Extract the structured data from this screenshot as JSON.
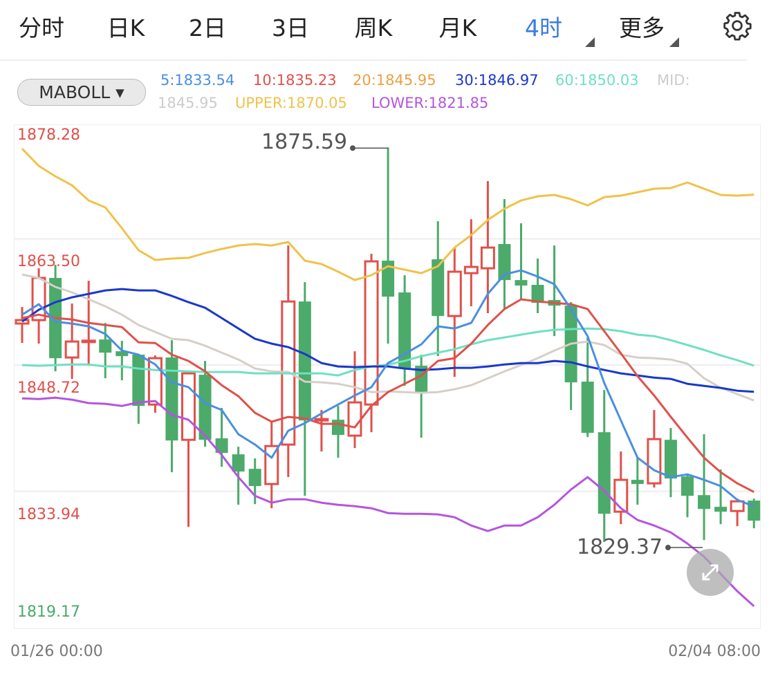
{
  "tabs": {
    "items": [
      {
        "label": "分时",
        "active": false
      },
      {
        "label": "日K",
        "active": false
      },
      {
        "label": "2日",
        "active": false
      },
      {
        "label": "3日",
        "active": false
      },
      {
        "label": "周K",
        "active": false
      },
      {
        "label": "月K",
        "active": false
      },
      {
        "label": "4时",
        "active": true
      },
      {
        "label": "更多",
        "active": false
      }
    ],
    "settings_icon": "gear-icon"
  },
  "indicator": {
    "selected": "MABOLL",
    "dropdown_icon": "▾",
    "legend": [
      {
        "text": "5:1833.54",
        "color": "#4a8fe0"
      },
      {
        "text": "10:1835.23",
        "color": "#e0504a"
      },
      {
        "text": "20:1845.95",
        "color": "#eba045"
      },
      {
        "text": "30:1846.97",
        "color": "#1a38cc"
      },
      {
        "text": "60:1850.03",
        "color": "#6fe0c2"
      },
      {
        "text": "MID:",
        "color": "#cccccc"
      },
      {
        "text": "1845.95",
        "color": "#cccccc"
      },
      {
        "text": "UPPER:1870.05",
        "color": "#f0c24a"
      },
      {
        "text": "LOWER:1821.85",
        "color": "#b455e0"
      }
    ]
  },
  "colors": {
    "up": "#e0504a",
    "down": "#4caa6a",
    "active_tab": "#3d7be0"
  },
  "chart_data": {
    "type": "candlestick",
    "y_ticks": [
      {
        "label": "1878.28",
        "value": 1878.28,
        "color": "#e0504a"
      },
      {
        "label": "1863.50",
        "value": 1863.5,
        "color": "#e0504a"
      },
      {
        "label": "1848.72",
        "value": 1848.72,
        "color": "#e0504a"
      },
      {
        "label": "1833.94",
        "value": 1833.94,
        "color": "#e0504a"
      },
      {
        "label": "1819.17",
        "value": 1819.17,
        "color": "#4caa6a"
      }
    ],
    "ylim": [
      1819.17,
      1878.28
    ],
    "grid": true,
    "x_labels": {
      "start": "01/26 00:00",
      "end": "02/04 08:00"
    },
    "annotations": {
      "high": {
        "label": "1875.59",
        "value": 1875.59
      },
      "low": {
        "label": "1829.37",
        "value": 1829.37
      }
    },
    "candles": [
      {
        "o": 1854.96,
        "h": 1856.9,
        "l": 1852.69,
        "c": 1855.36
      },
      {
        "o": 1855.36,
        "h": 1861.43,
        "l": 1852.61,
        "c": 1860.3
      },
      {
        "o": 1860.3,
        "h": 1861.84,
        "l": 1849.36,
        "c": 1850.9
      },
      {
        "o": 1850.98,
        "h": 1857.3,
        "l": 1848.47,
        "c": 1852.85
      },
      {
        "o": 1852.85,
        "h": 1859.97,
        "l": 1850.01,
        "c": 1852.95
      },
      {
        "o": 1853.09,
        "h": 1855.03,
        "l": 1848.55,
        "c": 1851.55
      },
      {
        "o": 1851.71,
        "h": 1852.93,
        "l": 1848.31,
        "c": 1851.14
      },
      {
        "o": 1851.31,
        "h": 1851.39,
        "l": 1843.21,
        "c": 1845.31
      },
      {
        "o": 1845.47,
        "h": 1851.23,
        "l": 1844.5,
        "c": 1850.9
      },
      {
        "o": 1850.98,
        "h": 1853.01,
        "l": 1837.54,
        "c": 1841.26
      },
      {
        "o": 1841.34,
        "h": 1849.36,
        "l": 1831.14,
        "c": 1849.12
      },
      {
        "o": 1848.96,
        "h": 1850.58,
        "l": 1840.53,
        "c": 1841.34
      },
      {
        "o": 1841.51,
        "h": 1845.07,
        "l": 1838.18,
        "c": 1839.8
      },
      {
        "o": 1839.64,
        "h": 1840.53,
        "l": 1833.73,
        "c": 1837.62
      },
      {
        "o": 1837.94,
        "h": 1839.16,
        "l": 1833.81,
        "c": 1835.92
      },
      {
        "o": 1836.16,
        "h": 1843.45,
        "l": 1833.32,
        "c": 1840.61
      },
      {
        "o": 1840.78,
        "h": 1864.1,
        "l": 1836.97,
        "c": 1857.54
      },
      {
        "o": 1857.54,
        "h": 1859.81,
        "l": 1834.78,
        "c": 1843.61
      },
      {
        "o": 1843.61,
        "h": 1844.83,
        "l": 1839.97,
        "c": 1843.77
      },
      {
        "o": 1843.69,
        "h": 1845.31,
        "l": 1839.24,
        "c": 1841.91
      },
      {
        "o": 1841.83,
        "h": 1851.71,
        "l": 1840.37,
        "c": 1845.72
      },
      {
        "o": 1845.47,
        "h": 1863.13,
        "l": 1842.23,
        "c": 1862.24
      },
      {
        "o": 1862.32,
        "h": 1875.59,
        "l": 1852.6,
        "c": 1858.11
      },
      {
        "o": 1858.6,
        "h": 1860.62,
        "l": 1847.66,
        "c": 1849.69
      },
      {
        "o": 1850.01,
        "h": 1851.31,
        "l": 1841.59,
        "c": 1846.93
      },
      {
        "o": 1862.48,
        "h": 1866.94,
        "l": 1851.14,
        "c": 1855.84
      },
      {
        "o": 1855.84,
        "h": 1863.86,
        "l": 1848.71,
        "c": 1861.03
      },
      {
        "o": 1860.86,
        "h": 1867.18,
        "l": 1856.98,
        "c": 1861.59
      },
      {
        "o": 1861.43,
        "h": 1871.64,
        "l": 1856.17,
        "c": 1863.86
      },
      {
        "o": 1864.27,
        "h": 1869.53,
        "l": 1856.65,
        "c": 1860.05
      },
      {
        "o": 1860.05,
        "h": 1866.7,
        "l": 1857.79,
        "c": 1859.41
      },
      {
        "o": 1859.49,
        "h": 1862.57,
        "l": 1856.17,
        "c": 1857.38
      },
      {
        "o": 1857.71,
        "h": 1864.1,
        "l": 1853.49,
        "c": 1857.06
      },
      {
        "o": 1857.06,
        "h": 1857.46,
        "l": 1844.83,
        "c": 1848.07
      },
      {
        "o": 1848.15,
        "h": 1853.33,
        "l": 1841.67,
        "c": 1842.15
      },
      {
        "o": 1842.23,
        "h": 1847.18,
        "l": 1829.37,
        "c": 1832.68
      },
      {
        "o": 1832.92,
        "h": 1839.97,
        "l": 1831.46,
        "c": 1836.65
      },
      {
        "o": 1836.65,
        "h": 1839.24,
        "l": 1833.73,
        "c": 1836.16
      },
      {
        "o": 1836.24,
        "h": 1844.83,
        "l": 1835.75,
        "c": 1841.42
      },
      {
        "o": 1841.34,
        "h": 1842.72,
        "l": 1834.62,
        "c": 1836.81
      },
      {
        "o": 1837.05,
        "h": 1837.38,
        "l": 1832.27,
        "c": 1834.78
      },
      {
        "o": 1834.86,
        "h": 1841.99,
        "l": 1829.6,
        "c": 1833.24
      },
      {
        "o": 1833.49,
        "h": 1837.86,
        "l": 1831.46,
        "c": 1832.92
      },
      {
        "o": 1833.0,
        "h": 1834.45,
        "l": 1831.22,
        "c": 1834.13
      },
      {
        "o": 1834.22,
        "h": 1834.45,
        "l": 1830.98,
        "c": 1831.87
      }
    ],
    "series": [
      {
        "name": "UPPER",
        "color": "#f0c24a",
        "values": [
          1875.44,
          1873.42,
          1872.2,
          1871.15,
          1869.37,
          1868.56,
          1866.13,
          1863.54,
          1862.4,
          1862.57,
          1862.65,
          1863.21,
          1863.7,
          1864.1,
          1864.27,
          1864.1,
          1864.51,
          1862.32,
          1861.92,
          1861.03,
          1860.05,
          1860.62,
          1861.67,
          1861.27,
          1860.86,
          1861.67,
          1863.86,
          1865.32,
          1867.1,
          1868.4,
          1869.37,
          1869.86,
          1870.02,
          1869.53,
          1868.8,
          1869.77,
          1869.94,
          1870.34,
          1870.75,
          1870.83,
          1871.48,
          1870.75,
          1870.02,
          1869.94,
          1870.05
        ]
      },
      {
        "name": "MID",
        "color": "#d6cfc8",
        "values": [
          1860.7,
          1860.3,
          1859.24,
          1858.6,
          1857.79,
          1856.98,
          1856.0,
          1854.79,
          1853.98,
          1853.17,
          1853.01,
          1852.36,
          1851.55,
          1850.74,
          1849.69,
          1849.36,
          1849.28,
          1848.15,
          1848.07,
          1847.9,
          1847.5,
          1846.93,
          1847.01,
          1846.93,
          1846.85,
          1846.93,
          1847.26,
          1847.74,
          1848.55,
          1849.36,
          1850.09,
          1850.9,
          1851.79,
          1852.6,
          1852.85,
          1852.44,
          1851.31,
          1850.98,
          1850.9,
          1850.74,
          1850.25,
          1848.55,
          1847.42,
          1846.69,
          1845.95
        ]
      },
      {
        "name": "LOWER",
        "color": "#b455e0",
        "values": [
          1846.2,
          1846.12,
          1846.28,
          1846.04,
          1845.64,
          1845.56,
          1845.31,
          1845.72,
          1845.88,
          1844.26,
          1843.69,
          1841.83,
          1839.56,
          1836.97,
          1834.78,
          1833.97,
          1834.38,
          1834.38,
          1833.97,
          1833.73,
          1833.57,
          1833.32,
          1832.76,
          1832.68,
          1832.68,
          1832.6,
          1832.27,
          1831.3,
          1830.65,
          1831.3,
          1831.3,
          1832.27,
          1833.73,
          1835.51,
          1836.97,
          1835.35,
          1833.32,
          1831.95,
          1831.3,
          1830.49,
          1829.19,
          1827.65,
          1825.63,
          1823.6,
          1821.85
        ]
      },
      {
        "name": "60",
        "color": "#6fe0c2",
        "values": [
          1850.09,
          1850.01,
          1850.09,
          1850.17,
          1850.17,
          1849.93,
          1849.93,
          1849.69,
          1849.52,
          1849.44,
          1849.36,
          1849.28,
          1849.28,
          1849.28,
          1849.12,
          1849.12,
          1849.12,
          1849.12,
          1849.12,
          1848.88,
          1849.52,
          1849.93,
          1850.17,
          1850.58,
          1851.14,
          1851.55,
          1851.95,
          1852.52,
          1853.01,
          1853.33,
          1853.66,
          1853.98,
          1854.22,
          1854.3,
          1854.38,
          1854.3,
          1854.06,
          1853.66,
          1853.49,
          1853.01,
          1852.44,
          1851.87,
          1851.23,
          1850.66,
          1850.03
        ]
      },
      {
        "name": "30",
        "color": "#1a38cc",
        "values": [
          1855.19,
          1856.57,
          1857.46,
          1858.03,
          1858.43,
          1858.84,
          1859.0,
          1858.84,
          1858.84,
          1858.19,
          1857.46,
          1856.81,
          1855.6,
          1854.38,
          1853.17,
          1852.6,
          1852.2,
          1851.39,
          1850.33,
          1849.93,
          1849.85,
          1849.93,
          1849.93,
          1849.69,
          1849.52,
          1849.61,
          1849.77,
          1849.77,
          1849.93,
          1850.17,
          1850.33,
          1850.33,
          1850.58,
          1850.42,
          1849.93,
          1849.52,
          1849.12,
          1848.88,
          1848.63,
          1848.47,
          1847.9,
          1847.66,
          1847.42,
          1847.09,
          1846.97
        ]
      },
      {
        "name": "10",
        "color": "#e0504a",
        "values": [
          1855.6,
          1856.0,
          1855.6,
          1855.44,
          1855.03,
          1854.79,
          1854.55,
          1852.76,
          1852.68,
          1851.31,
          1850.58,
          1849.36,
          1847.74,
          1846.45,
          1844.5,
          1843.45,
          1844.02,
          1843.85,
          1843.21,
          1843.21,
          1842.8,
          1845.31,
          1846.93,
          1847.9,
          1848.88,
          1850.58,
          1850.9,
          1852.6,
          1854.79,
          1856.65,
          1857.79,
          1857.54,
          1857.38,
          1857.22,
          1856.65,
          1854.06,
          1851.47,
          1848.8,
          1846.53,
          1844.02,
          1841.59,
          1839.24,
          1837.54,
          1836.24,
          1835.23
        ]
      },
      {
        "name": "5",
        "color": "#4a8fe0",
        "values": [
          1856.0,
          1857.22,
          1855.19,
          1854.95,
          1854.63,
          1853.74,
          1851.79,
          1851.31,
          1850.17,
          1848.07,
          1847.5,
          1845.64,
          1844.83,
          1841.99,
          1840.78,
          1839.24,
          1842.4,
          1843.29,
          1844.42,
          1845.47,
          1846.53,
          1847.5,
          1850.33,
          1851.39,
          1852.52,
          1854.63,
          1854.38,
          1855.03,
          1858.43,
          1860.7,
          1861.19,
          1860.46,
          1859.57,
          1856.65,
          1853.49,
          1847.99,
          1843.61,
          1839.24,
          1837.78,
          1836.97,
          1837.29,
          1836.65,
          1835.92,
          1834.3,
          1833.54
        ]
      }
    ]
  }
}
